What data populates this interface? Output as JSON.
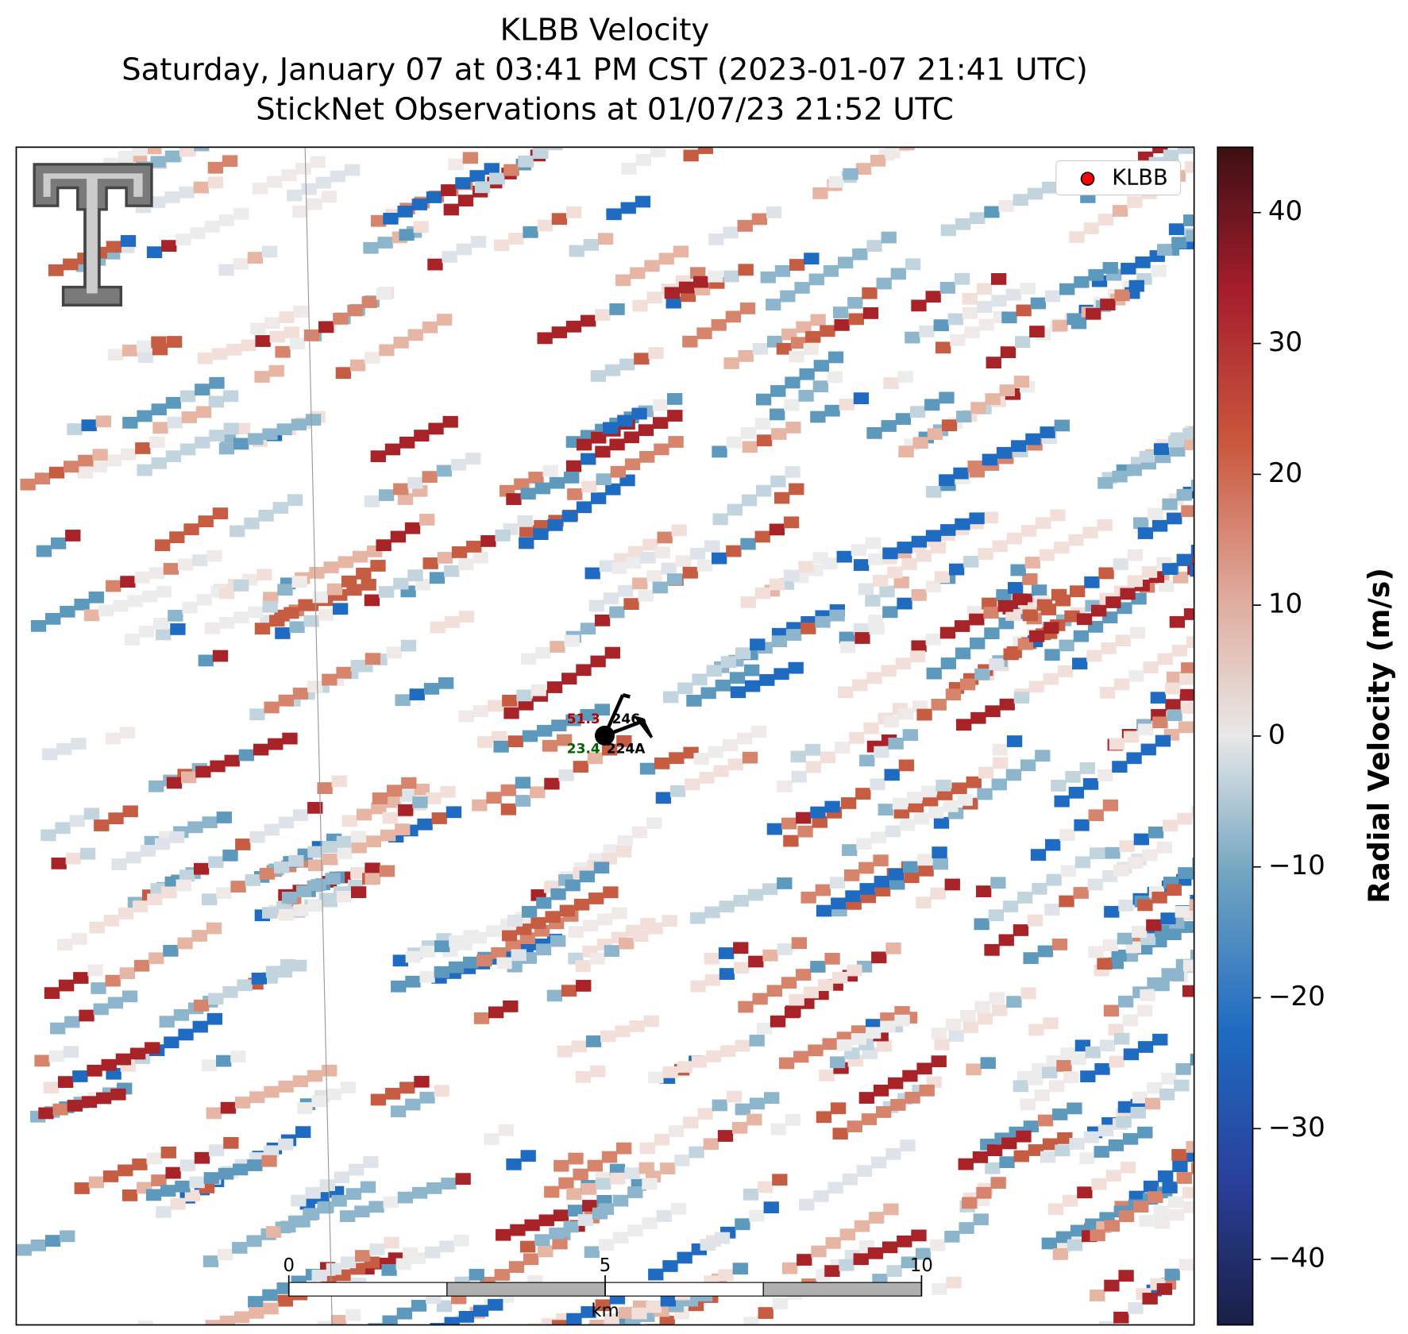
{
  "header": {
    "title_lines": [
      "KLBB Velocity",
      "Saturday, January 07 at 03:41 PM CST (2023-01-07 21:41 UTC)",
      "StickNet Observations at 01/07/23 21:52 UTC"
    ]
  },
  "legend": {
    "label": "KLBB",
    "color": "#ff0000"
  },
  "colorbar": {
    "label": "Radial Velocity (m/s)",
    "lim": [
      -45,
      45
    ],
    "ticks": [
      {
        "value": -40,
        "label": "−40"
      },
      {
        "value": -30,
        "label": "−30"
      },
      {
        "value": -20,
        "label": "−20"
      },
      {
        "value": -10,
        "label": "−10"
      },
      0,
      10,
      20,
      30,
      40
    ]
  },
  "scale_bar": {
    "lim": [
      0,
      10
    ],
    "ticks": [
      0,
      5,
      10
    ],
    "unit": "km"
  },
  "station": {
    "temperature": 51.3,
    "dewpoint": 23.4,
    "id": "246",
    "id2": "224A"
  }
}
